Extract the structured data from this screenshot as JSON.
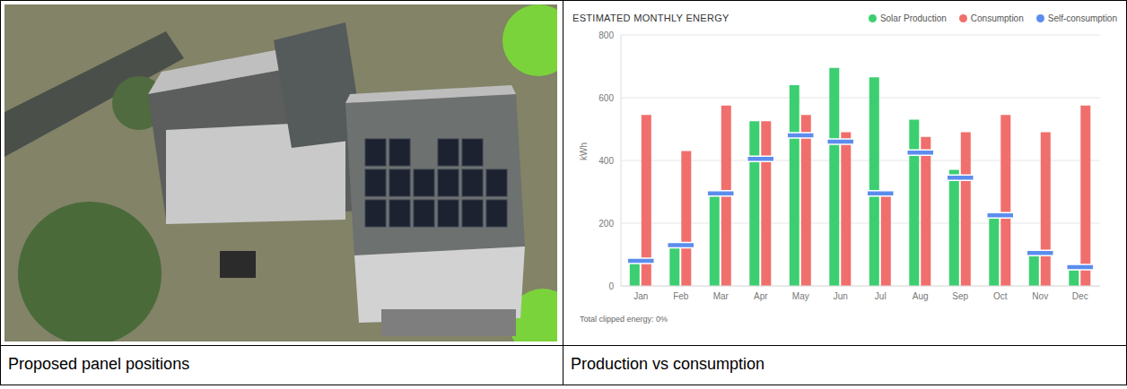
{
  "chart_data": {
    "type": "bar",
    "title": "ESTIMATED MONTHLY ENERGY",
    "y_label": "kWh",
    "annotation": "Total clipped energy: 0%",
    "categories": [
      "Jan",
      "Feb",
      "Mar",
      "Apr",
      "May",
      "Jun",
      "Jul",
      "Aug",
      "Sep",
      "Oct",
      "Nov",
      "Dec"
    ],
    "series": [
      {
        "name": "Solar Production",
        "color": "#3ccf72",
        "values": [
          75,
          125,
          290,
          525,
          640,
          695,
          665,
          530,
          370,
          220,
          100,
          50
        ]
      },
      {
        "name": "Consumption",
        "color": "#f06f6c",
        "values": [
          545,
          430,
          575,
          525,
          545,
          490,
          290,
          475,
          490,
          545,
          490,
          575
        ]
      },
      {
        "name": "Self-consumption",
        "color": "#5b8def",
        "type": "line",
        "marker": "dash",
        "line_style": "none",
        "values": [
          80,
          130,
          295,
          405,
          480,
          460,
          295,
          425,
          345,
          225,
          105,
          60
        ]
      }
    ],
    "ylim": [
      0,
      800
    ],
    "yticks": [
      0,
      200,
      400,
      600,
      800
    ],
    "grid": true,
    "legend": "top-right"
  },
  "captions": [
    "Proposed panel positions",
    "Production vs consumption"
  ]
}
